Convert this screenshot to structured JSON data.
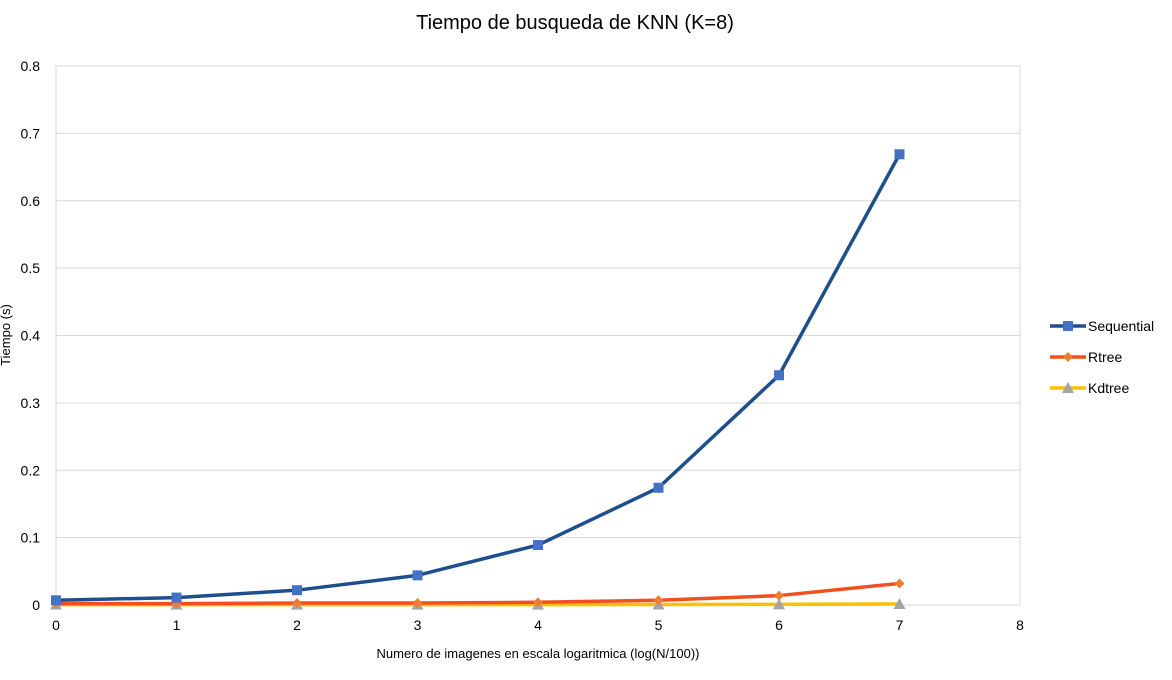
{
  "chart_data": {
    "type": "line",
    "title": "Tiempo de busqueda de KNN (K=8)",
    "xlabel": "Numero de imagenes en escala logaritmica (log(N/100))",
    "ylabel": "Tiempo (s)",
    "xlim": [
      0,
      8
    ],
    "ylim": [
      0,
      0.8
    ],
    "x_ticks": [
      "0",
      "1",
      "2",
      "3",
      "4",
      "5",
      "6",
      "7",
      "8"
    ],
    "y_ticks": [
      "0",
      "0.1",
      "0.2",
      "0.3",
      "0.4",
      "0.5",
      "0.6",
      "0.7",
      "0.8"
    ],
    "grid": "horizontal",
    "legend_position": "right",
    "x": [
      0,
      1,
      2,
      3,
      4,
      5,
      6,
      7
    ],
    "series": [
      {
        "name": "Sequential",
        "color": "#1f4e8c",
        "marker_color": "#4472c4",
        "marker": "square",
        "values": [
          0.007,
          0.011,
          0.022,
          0.044,
          0.089,
          0.174,
          0.341,
          0.669
        ]
      },
      {
        "name": "Rtree",
        "color": "#f24e1e",
        "marker_color": "#ed7d31",
        "marker": "diamond",
        "values": [
          0.002,
          0.002,
          0.003,
          0.003,
          0.004,
          0.007,
          0.014,
          0.032
        ]
      },
      {
        "name": "Kdtree",
        "color": "#ffc000",
        "marker_color": "#a5a5a5",
        "marker": "triangle",
        "values": [
          0.0005,
          0.0005,
          0.0005,
          0.0005,
          0.0005,
          0.0007,
          0.001,
          0.0015
        ]
      }
    ]
  }
}
